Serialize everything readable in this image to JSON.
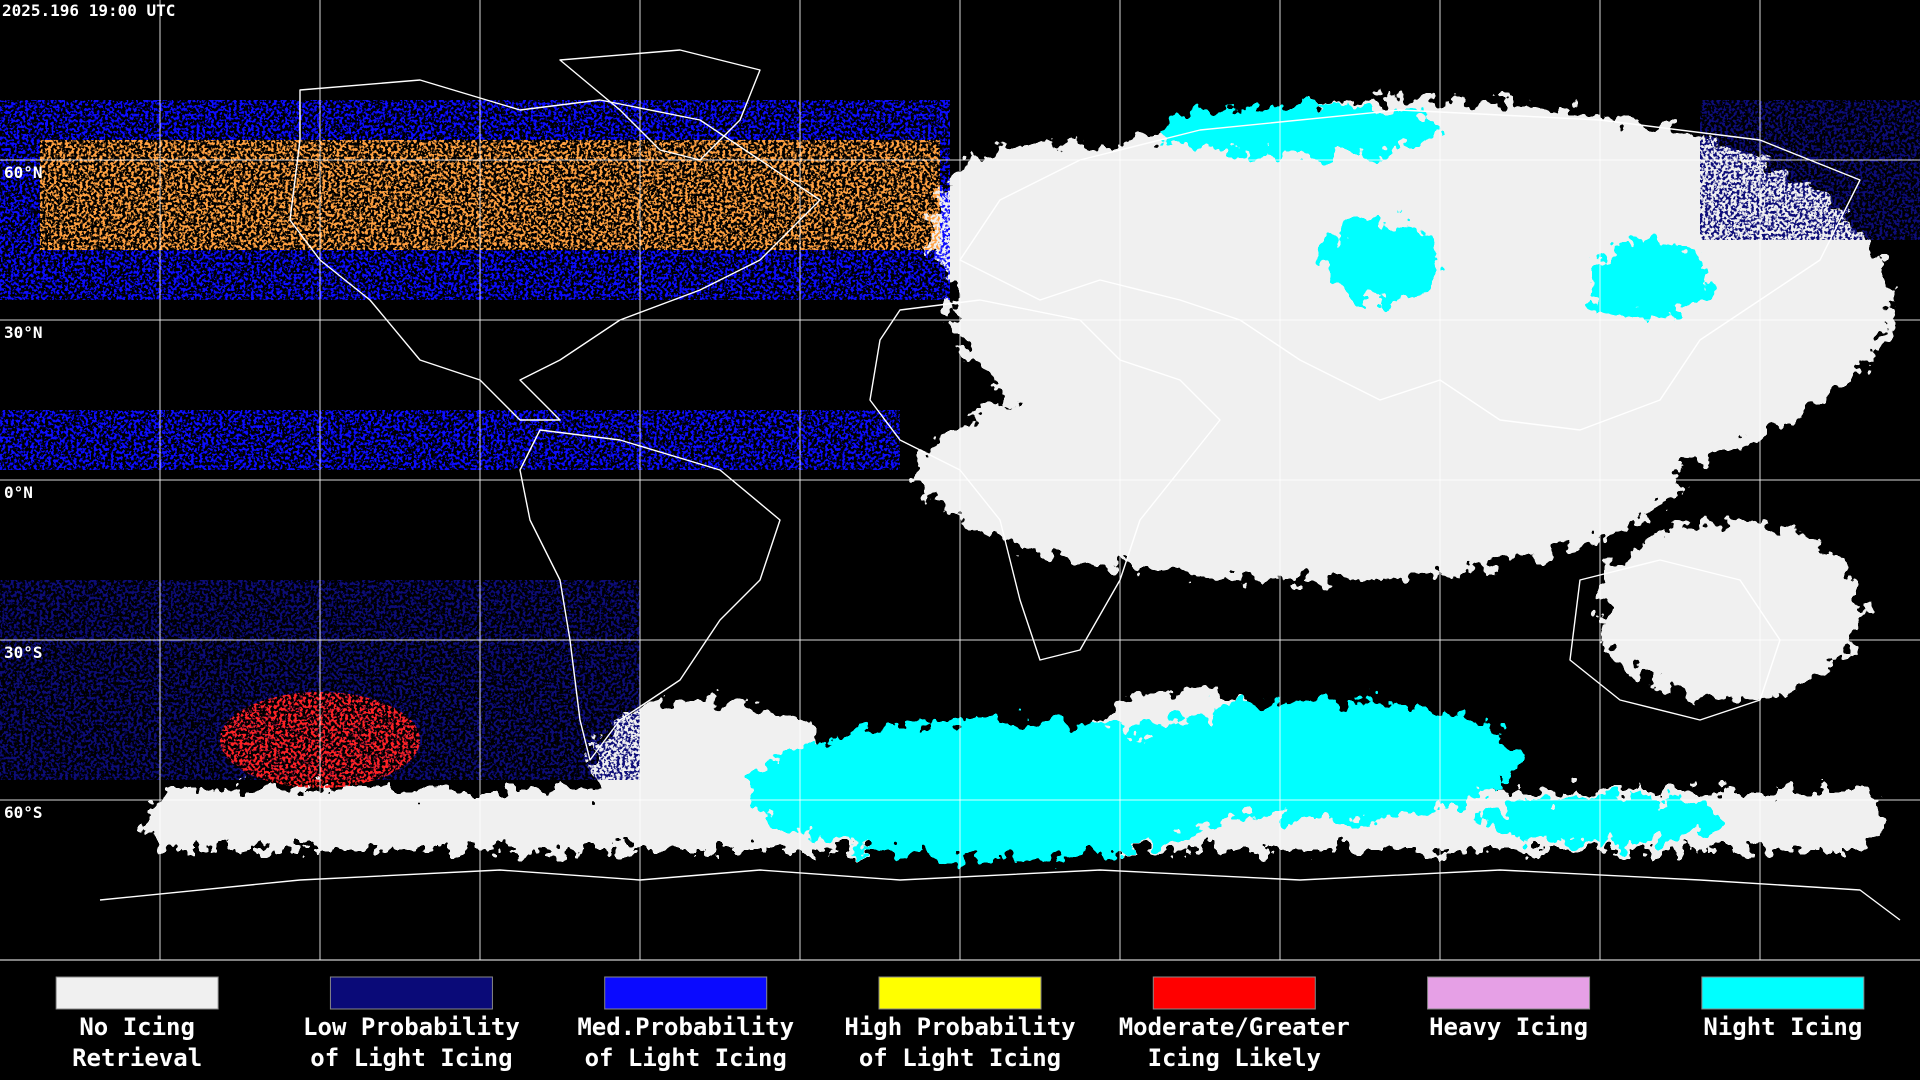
{
  "timestamp": "2025.196 19:00 UTC",
  "latitude_labels": [
    "60°N",
    "30°N",
    "0°N",
    "30°S",
    "60°S"
  ],
  "legend": [
    {
      "color": "#f0f0f0",
      "label_lines": [
        "No Icing",
        "Retrieval"
      ]
    },
    {
      "color": "#0a0a78",
      "label_lines": [
        "Low Probability",
        "of Light Icing"
      ]
    },
    {
      "color": "#0a0aff",
      "label_lines": [
        "Med.Probability",
        "of Light Icing"
      ]
    },
    {
      "color": "#ffff00",
      "label_lines": [
        "High Probability",
        "of Light Icing"
      ]
    },
    {
      "color": "#ff0000",
      "label_lines": [
        "Moderate/Greater",
        "Icing Likely"
      ]
    },
    {
      "color": "#e6a0e6",
      "label_lines": [
        "Heavy Icing"
      ]
    },
    {
      "color": "#00ffff",
      "label_lines": [
        "Night Icing"
      ]
    }
  ]
}
